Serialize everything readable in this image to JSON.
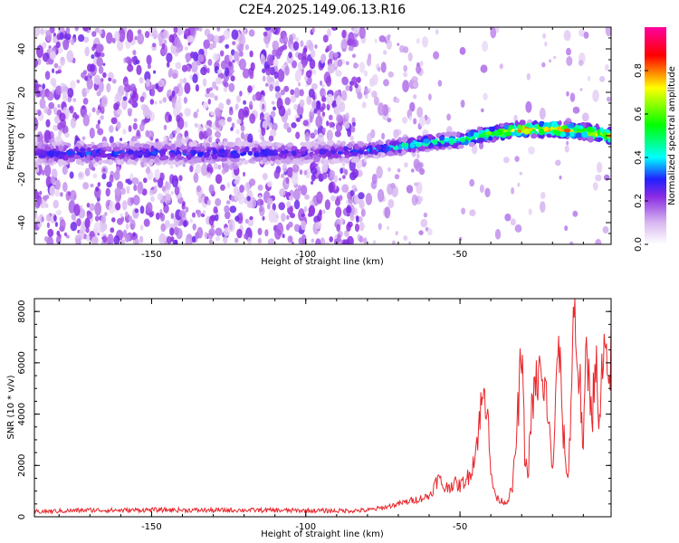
{
  "title": "C2E4.2025.149.06.13.R16",
  "colors": {
    "snr_line": "#e8262b",
    "axis": "#000000",
    "background": "#ffffff"
  },
  "chart_data": [
    {
      "type": "heatmap",
      "xlabel": "Height of straight line (km)",
      "ylabel": "Frequency (Hz)",
      "xlim": [
        -188,
        -1
      ],
      "ylim": [
        -50,
        50
      ],
      "x_ticks": [
        -150,
        -100,
        -50
      ],
      "y_ticks": [
        -40,
        -20,
        0,
        20,
        40
      ],
      "colorbar": {
        "label": "Normalized spectral amplitude",
        "ticks": [
          "0.0",
          "0.2",
          "0.4",
          "0.6",
          "0.8"
        ],
        "range": [
          0,
          1
        ],
        "colormap": [
          "#ffffff",
          "#8a2be2",
          "#2020ff",
          "#00ffff",
          "#00ff00",
          "#ffff00",
          "#ff0000",
          "#ff00a0"
        ]
      },
      "signal_trace": {
        "x": [
          -188,
          -160,
          -140,
          -120,
          -100,
          -82,
          -70,
          -60,
          -50,
          -40,
          -30,
          -20,
          -10,
          -1
        ],
        "frequency": [
          -8,
          -8,
          -8,
          -8,
          -8,
          -7,
          -5,
          -3,
          -2,
          1,
          3,
          3,
          2,
          0
        ],
        "peak_amplitude": [
          0.35,
          0.35,
          0.35,
          0.35,
          0.3,
          0.35,
          0.5,
          0.55,
          0.6,
          0.7,
          0.9,
          0.9,
          0.8,
          0.9
        ]
      },
      "grid": false
    },
    {
      "type": "line",
      "xlabel": "Height of straight line (km)",
      "ylabel": "SNR (10 * v/v)",
      "xlim": [
        -188,
        -1
      ],
      "ylim": [
        0,
        8500
      ],
      "x_ticks": [
        -150,
        -100,
        -50
      ],
      "y_ticks": [
        0,
        2000,
        4000,
        6000,
        8000
      ],
      "series": [
        {
          "x": [
            -188,
            -180,
            -170,
            -160,
            -150,
            -140,
            -130,
            -120,
            -110,
            -100,
            -90,
            -80,
            -75,
            -70,
            -65,
            -60,
            -57,
            -55,
            -52,
            -50,
            -47,
            -45,
            -43,
            -41,
            -40,
            -38,
            -35,
            -33,
            -32,
            -30,
            -29,
            -28,
            -27,
            -26,
            -25,
            -24,
            -23,
            -22,
            -21,
            -20,
            -19,
            -18,
            -17,
            -16,
            -15,
            -14,
            -13,
            -12,
            -11,
            -10,
            -9,
            -8,
            -7,
            -6,
            -5,
            -4,
            -3,
            -2,
            -1
          ],
          "values": [
            200,
            220,
            260,
            250,
            270,
            260,
            250,
            260,
            250,
            240,
            230,
            250,
            350,
            500,
            650,
            800,
            1500,
            1100,
            1300,
            1200,
            1600,
            2500,
            4400,
            4800,
            1500,
            700,
            550,
            1100,
            2600,
            6400,
            2500,
            1500,
            3800,
            4700,
            5300,
            5700,
            4500,
            5000,
            3200,
            1800,
            4200,
            7200,
            4000,
            2600,
            1300,
            4500,
            8400,
            6200,
            5000,
            2500,
            6600,
            5000,
            4200,
            6500,
            3000,
            5500,
            6200,
            5000,
            6400
          ]
        }
      ],
      "grid": false
    }
  ]
}
